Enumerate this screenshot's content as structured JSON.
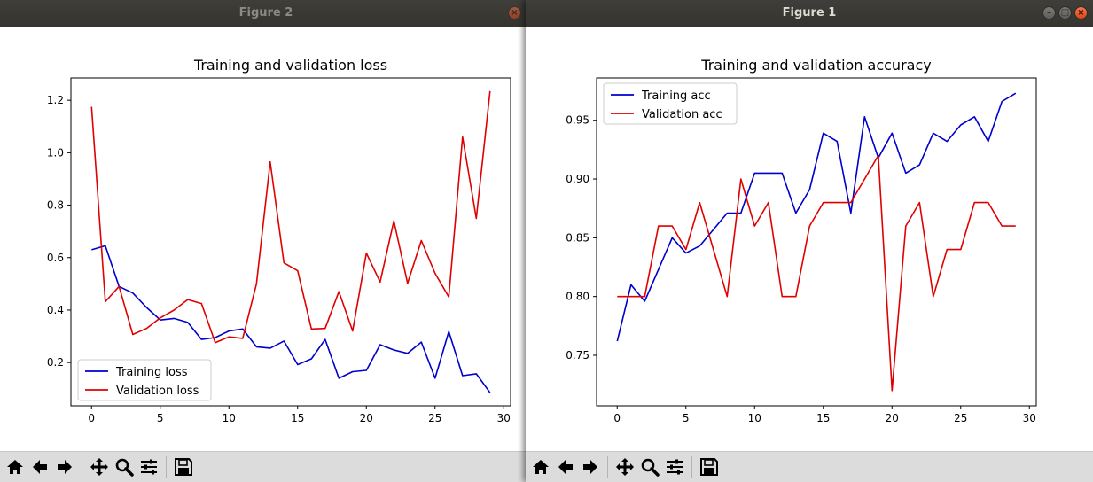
{
  "windows": {
    "figure2": {
      "title": "Figure 2"
    },
    "figure1": {
      "title": "Figure 1"
    }
  },
  "window_controls": {
    "minimize": "–",
    "maximize": "□",
    "close": "×"
  },
  "toolbar": {
    "icons": [
      "home-icon",
      "back-icon",
      "forward-icon",
      "pan-icon",
      "zoom-icon",
      "configure-subplots-icon",
      "save-icon"
    ]
  },
  "colors": {
    "training": "#0000cc",
    "validation": "#e00000",
    "titlebar": "#3b3a36",
    "toolbar": "#dcdcdc"
  },
  "chart_data": [
    {
      "type": "line",
      "title": "Training and validation loss",
      "xlabel": "",
      "ylabel": "",
      "xlim": [
        -1.5,
        30.5
      ],
      "ylim": [
        0.035,
        1.285
      ],
      "xticks": [
        0,
        5,
        10,
        15,
        20,
        25,
        30
      ],
      "yticks": [
        0.2,
        0.4,
        0.6,
        0.8,
        1.0,
        1.2
      ],
      "ytick_labels": [
        "0.2",
        "0.4",
        "0.6",
        "0.8",
        "1.0",
        "1.2"
      ],
      "legend": "lower-left",
      "grid": false,
      "x": [
        0,
        1,
        2,
        3,
        4,
        5,
        6,
        7,
        8,
        9,
        10,
        11,
        12,
        13,
        14,
        15,
        16,
        17,
        18,
        19,
        20,
        21,
        22,
        23,
        24,
        25,
        26,
        27,
        28,
        29
      ],
      "series": [
        {
          "name": "Training loss",
          "color": "#0000cc",
          "values": [
            0.63,
            0.645,
            0.49,
            0.465,
            0.41,
            0.362,
            0.368,
            0.353,
            0.288,
            0.295,
            0.32,
            0.328,
            0.26,
            0.255,
            0.282,
            0.192,
            0.214,
            0.288,
            0.14,
            0.165,
            0.17,
            0.268,
            0.248,
            0.235,
            0.278,
            0.14,
            0.318,
            0.15,
            0.157,
            0.085
          ]
        },
        {
          "name": "Validation loss",
          "color": "#e00000",
          "values": [
            1.175,
            0.432,
            0.49,
            0.307,
            0.33,
            0.37,
            0.4,
            0.44,
            0.425,
            0.276,
            0.298,
            0.292,
            0.5,
            0.965,
            0.58,
            0.55,
            0.328,
            0.33,
            0.47,
            0.32,
            0.617,
            0.507,
            0.74,
            0.502,
            0.665,
            0.54,
            0.45,
            1.06,
            0.75,
            1.235
          ]
        }
      ]
    },
    {
      "type": "line",
      "title": "Training and validation accuracy",
      "xlabel": "",
      "ylabel": "",
      "xlim": [
        -1.5,
        30.5
      ],
      "ylim": [
        0.707,
        0.986
      ],
      "xticks": [
        0,
        5,
        10,
        15,
        20,
        25,
        30
      ],
      "yticks": [
        0.75,
        0.8,
        0.85,
        0.9,
        0.95
      ],
      "ytick_labels": [
        "0.75",
        "0.80",
        "0.85",
        "0.90",
        "0.95"
      ],
      "legend": "upper-left",
      "grid": false,
      "x": [
        0,
        1,
        2,
        3,
        4,
        5,
        6,
        7,
        8,
        9,
        10,
        11,
        12,
        13,
        14,
        15,
        16,
        17,
        18,
        19,
        20,
        21,
        22,
        23,
        24,
        25,
        26,
        27,
        28,
        29
      ],
      "series": [
        {
          "name": "Training acc",
          "color": "#0000cc",
          "values": [
            0.762,
            0.81,
            0.796,
            0.823,
            0.85,
            0.837,
            0.843,
            0.857,
            0.871,
            0.871,
            0.905,
            0.905,
            0.905,
            0.871,
            0.891,
            0.939,
            0.932,
            0.871,
            0.953,
            0.918,
            0.939,
            0.905,
            0.912,
            0.939,
            0.932,
            0.946,
            0.953,
            0.932,
            0.966,
            0.973
          ]
        },
        {
          "name": "Validation acc",
          "color": "#e00000",
          "values": [
            0.8,
            0.8,
            0.8,
            0.86,
            0.86,
            0.84,
            0.88,
            0.84,
            0.8,
            0.9,
            0.86,
            0.88,
            0.8,
            0.8,
            0.86,
            0.88,
            0.88,
            0.88,
            0.9,
            0.92,
            0.72,
            0.86,
            0.88,
            0.8,
            0.84,
            0.84,
            0.88,
            0.88,
            0.86,
            0.86
          ]
        }
      ]
    }
  ]
}
